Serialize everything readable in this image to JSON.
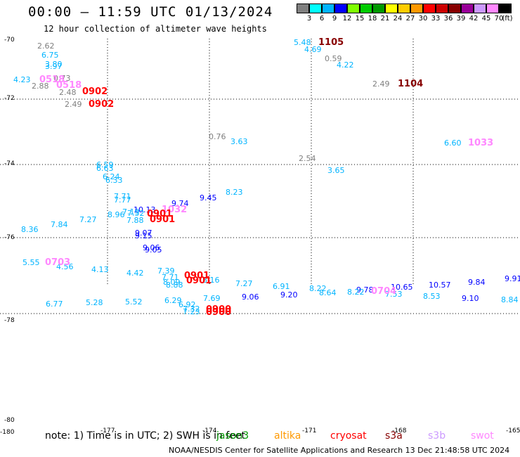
{
  "header": {
    "title": "00:00 – 11:59 UTC 01/13/2024",
    "subtitle": "12 hour collection of altimeter wave heights"
  },
  "legend": {
    "swatches": [
      {
        "color": "#7f7f7f",
        "label": "3"
      },
      {
        "color": "#00ffff",
        "label": "6"
      },
      {
        "color": "#00b4ff",
        "label": "9"
      },
      {
        "color": "#0000ff",
        "label": "12"
      },
      {
        "color": "#7fff00",
        "label": "15"
      },
      {
        "color": "#00cc00",
        "label": "18"
      },
      {
        "color": "#009900",
        "label": "21"
      },
      {
        "color": "#ffff00",
        "label": "24"
      },
      {
        "color": "#ffcc00",
        "label": "27"
      },
      {
        "color": "#ff9900",
        "label": "30"
      },
      {
        "color": "#ff0000",
        "label": "33"
      },
      {
        "color": "#cc0000",
        "label": "36"
      },
      {
        "color": "#880000",
        "label": "39"
      },
      {
        "color": "#990099",
        "label": "42"
      },
      {
        "color": "#cc99ff",
        "label": "45"
      },
      {
        "color": "#ff88ff",
        "label": "70"
      },
      {
        "color": "#000000",
        "label": "(ft)"
      }
    ]
  },
  "axes": {
    "lat_labels": [
      "-70",
      "-72",
      "-74",
      "-76",
      "-78",
      "-80"
    ],
    "lon_labels": [
      "-180",
      "-177",
      "-174",
      "-171",
      "-168",
      "-165"
    ]
  },
  "colors": {
    "gray": "#7f7f7f",
    "cyan": "#00ffff",
    "sky": "#00b4ff",
    "blue": "#0000ff",
    "red": "#ff0000",
    "darkred": "#880000",
    "violet": "#ff88ff",
    "green": "#009900",
    "orange": "#ff9900",
    "lilac": "#cc99ff"
  },
  "observations": [
    {
      "t": "2.62",
      "c": "gray"
    },
    {
      "t": "6.75",
      "c": "sky"
    },
    {
      "t": "3.80",
      "c": "sky"
    },
    {
      "t": "3.97",
      "c": "sky"
    },
    {
      "t": "4.23",
      "c": "sky"
    },
    {
      "t": "0.73",
      "c": "gray"
    },
    {
      "t": "2.88",
      "c": "gray"
    },
    {
      "t": "2.48",
      "c": "gray"
    },
    {
      "t": "2.49",
      "c": "gray"
    },
    {
      "t": "5.48",
      "c": "sky"
    },
    {
      "t": "4.69",
      "c": "sky"
    },
    {
      "t": "0.59",
      "c": "gray"
    },
    {
      "t": "4.22",
      "c": "sky"
    },
    {
      "t": "2.49",
      "c": "gray"
    },
    {
      "t": "0.76",
      "c": "gray"
    },
    {
      "t": "3.63",
      "c": "sky"
    },
    {
      "t": "2.54",
      "c": "gray"
    },
    {
      "t": "3.65",
      "c": "sky"
    },
    {
      "t": "6.60",
      "c": "sky"
    },
    {
      "t": "6.59",
      "c": "sky"
    },
    {
      "t": "6.63",
      "c": "sky"
    },
    {
      "t": "6.24",
      "c": "sky"
    },
    {
      "t": "6.33",
      "c": "sky"
    },
    {
      "t": "7.71",
      "c": "sky"
    },
    {
      "t": "7.77",
      "c": "sky"
    },
    {
      "t": "7.19",
      "c": "sky"
    },
    {
      "t": "10.13",
      "c": "blue"
    },
    {
      "t": "8.96",
      "c": "sky"
    },
    {
      "t": "7.52",
      "c": "sky"
    },
    {
      "t": "7.88",
      "c": "sky"
    },
    {
      "t": "9.74",
      "c": "blue"
    },
    {
      "t": "9.45",
      "c": "blue"
    },
    {
      "t": "8.23",
      "c": "sky"
    },
    {
      "t": "8.36",
      "c": "sky"
    },
    {
      "t": "7.84",
      "c": "sky"
    },
    {
      "t": "7.27",
      "c": "sky"
    },
    {
      "t": "9.07",
      "c": "blue"
    },
    {
      "t": "9.15",
      "c": "blue"
    },
    {
      "t": "9.06",
      "c": "blue"
    },
    {
      "t": "9.05",
      "c": "blue"
    },
    {
      "t": "5.55",
      "c": "sky"
    },
    {
      "t": "4.56",
      "c": "sky"
    },
    {
      "t": "4.13",
      "c": "sky"
    },
    {
      "t": "4.42",
      "c": "sky"
    },
    {
      "t": "7.39",
      "c": "sky"
    },
    {
      "t": "7.71",
      "c": "sky"
    },
    {
      "t": "8.09",
      "c": "sky"
    },
    {
      "t": "8.88",
      "c": "sky"
    },
    {
      "t": "8.16",
      "c": "sky"
    },
    {
      "t": "7.27",
      "c": "sky"
    },
    {
      "t": "6.91",
      "c": "sky"
    },
    {
      "t": "8.22",
      "c": "sky"
    },
    {
      "t": "8.64",
      "c": "sky"
    },
    {
      "t": "9.78",
      "c": "blue"
    },
    {
      "t": "8.22",
      "c": "sky"
    },
    {
      "t": "10.65",
      "c": "blue"
    },
    {
      "t": "7.53",
      "c": "sky"
    },
    {
      "t": "10.57",
      "c": "blue"
    },
    {
      "t": "9.84",
      "c": "blue"
    },
    {
      "t": "9.91",
      "c": "blue"
    },
    {
      "t": "6.77",
      "c": "sky"
    },
    {
      "t": "5.28",
      "c": "sky"
    },
    {
      "t": "5.52",
      "c": "sky"
    },
    {
      "t": "6.29",
      "c": "sky"
    },
    {
      "t": "6.92",
      "c": "sky"
    },
    {
      "t": "7.32",
      "c": "sky"
    },
    {
      "t": "7.23",
      "c": "sky"
    },
    {
      "t": "7.69",
      "c": "sky"
    },
    {
      "t": "9.06",
      "c": "blue"
    },
    {
      "t": "9.20",
      "c": "blue"
    },
    {
      "t": "8.53",
      "c": "sky"
    },
    {
      "t": "9.10",
      "c": "blue"
    },
    {
      "t": "8.84",
      "c": "sky"
    }
  ],
  "satellite_tags": [
    {
      "t": "1105",
      "c": "darkred"
    },
    {
      "t": "1104",
      "c": "darkred"
    },
    {
      "t": "0518",
      "c": "violet"
    },
    {
      "t": "0518",
      "c": "violet"
    },
    {
      "t": "0902",
      "c": "red"
    },
    {
      "t": "0902",
      "c": "red"
    },
    {
      "t": "1033",
      "c": "violet"
    },
    {
      "t": "1032",
      "c": "violet"
    },
    {
      "t": "0901",
      "c": "red"
    },
    {
      "t": "0901",
      "c": "red"
    },
    {
      "t": "0703",
      "c": "violet"
    },
    {
      "t": "0901",
      "c": "red"
    },
    {
      "t": "0901",
      "c": "red"
    },
    {
      "t": "0704",
      "c": "violet"
    },
    {
      "t": "0900",
      "c": "red"
    },
    {
      "t": "0900",
      "c": "red"
    }
  ],
  "footer": {
    "note": "note: 1) Time is in UTC; 2) SWH is in feet",
    "missions": [
      {
        "t": "jason3",
        "c": "green"
      },
      {
        "t": "altika",
        "c": "orange"
      },
      {
        "t": "cryosat",
        "c": "red"
      },
      {
        "t": "s3a",
        "c": "darkred"
      },
      {
        "t": "s3b",
        "c": "lilac"
      },
      {
        "t": "swot",
        "c": "violet"
      }
    ],
    "credit": "NOAA/NESDIS Center for Satellite Applications and Research    13 Dec 21:48:58 UTC 2024"
  }
}
